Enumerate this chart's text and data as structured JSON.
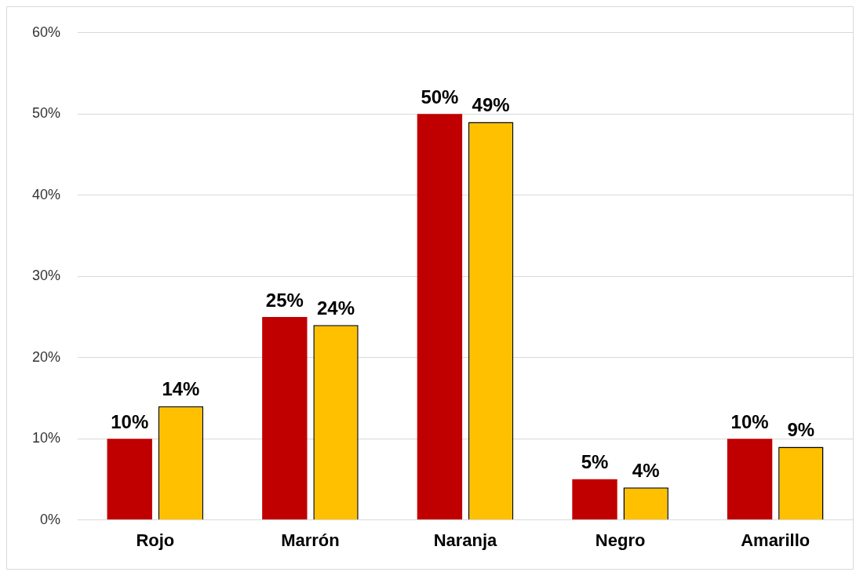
{
  "chart_data": {
    "type": "bar",
    "categories": [
      "Rojo",
      "Marrón",
      "Naranja",
      "Negro",
      "Amarillo"
    ],
    "series": [
      {
        "color": "#c00000",
        "values": [
          10,
          25,
          50,
          5,
          10
        ],
        "value_labels": [
          "10%",
          "25%",
          "50%",
          "5%",
          "10%"
        ]
      },
      {
        "color": "#ffc000",
        "values": [
          14,
          24,
          49,
          4,
          9
        ],
        "value_labels": [
          "14%",
          "24%",
          "49%",
          "4%",
          "9%"
        ]
      }
    ],
    "ylim": [
      0,
      60
    ],
    "yticks": [
      {
        "value": 0,
        "label": "0%"
      },
      {
        "value": 10,
        "label": "10%"
      },
      {
        "value": 20,
        "label": "20%"
      },
      {
        "value": 30,
        "label": "30%"
      },
      {
        "value": 40,
        "label": "40%"
      },
      {
        "value": 50,
        "label": "50%"
      },
      {
        "value": 60,
        "label": "60%"
      }
    ],
    "grid": "y",
    "legend": false
  }
}
